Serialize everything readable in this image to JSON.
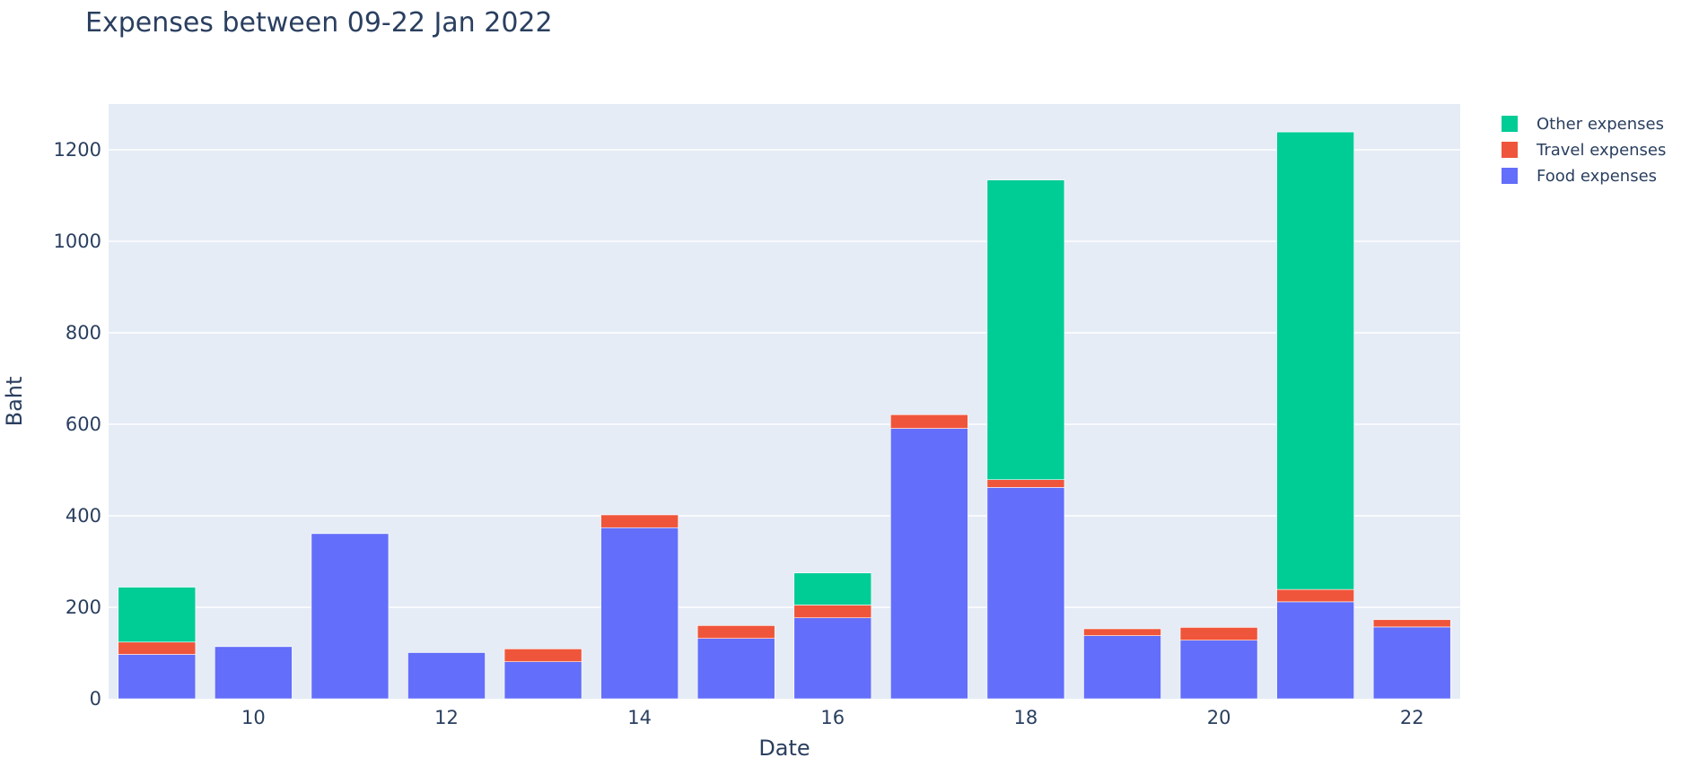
{
  "chart_data": {
    "type": "bar",
    "barmode": "stack",
    "title": "Expenses between 09-22 Jan 2022",
    "xlabel": "Date",
    "ylabel": "Baht",
    "x": [
      9,
      10,
      11,
      12,
      13,
      14,
      15,
      16,
      17,
      18,
      19,
      20,
      21,
      22
    ],
    "xticks": [
      10,
      12,
      14,
      16,
      18,
      20,
      22
    ],
    "yticks": [
      0,
      200,
      400,
      600,
      800,
      1000,
      1200
    ],
    "xlim": [
      8.5,
      22.5
    ],
    "ylim": [
      0,
      1300
    ],
    "grid": true,
    "legend_position": "top-right",
    "series": [
      {
        "name": "Food expenses",
        "color": "#636efa",
        "values": [
          97,
          114,
          361,
          101,
          81,
          374,
          132,
          177,
          591,
          462,
          138,
          128,
          212,
          157
        ]
      },
      {
        "name": "Travel expenses",
        "color": "#ef553b",
        "values": [
          27,
          0,
          0,
          0,
          28,
          28,
          28,
          28,
          30,
          17,
          15,
          28,
          27,
          16
        ]
      },
      {
        "name": "Other expenses",
        "color": "#00cc96",
        "values": [
          120,
          0,
          0,
          0,
          0,
          0,
          0,
          70,
          0,
          655,
          0,
          0,
          1000,
          0
        ]
      }
    ],
    "legend_order": [
      "Other expenses",
      "Travel expenses",
      "Food expenses"
    ]
  }
}
